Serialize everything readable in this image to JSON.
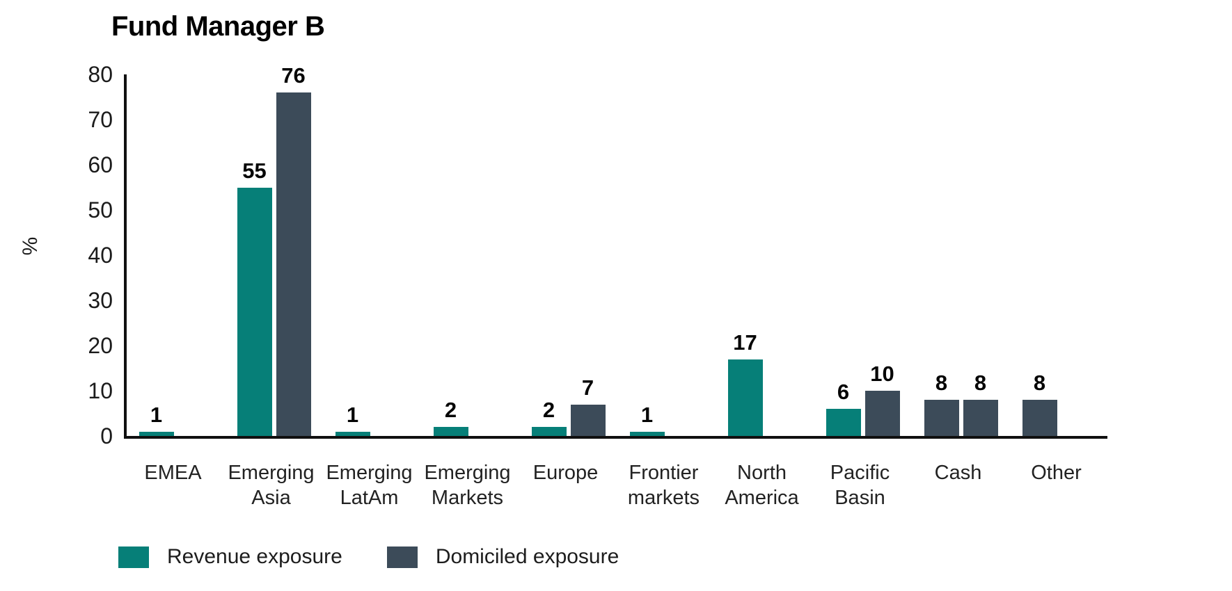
{
  "title": "Fund Manager B",
  "chart_data": {
    "type": "bar",
    "title": "Fund Manager B",
    "xlabel": "",
    "ylabel": "%",
    "ylim": [
      0,
      80
    ],
    "yticks": [
      0,
      10,
      20,
      30,
      40,
      50,
      60,
      70,
      80
    ],
    "grid": false,
    "legend_position": "bottom-left",
    "value_labels": true,
    "axis_color": "#101010",
    "categories": [
      "EMEA",
      "Emerging Asia",
      "Emerging LatAm",
      "Emerging Markets",
      "Europe",
      "Frontier markets",
      "North America",
      "Pacific Basin",
      "Cash",
      "Other"
    ],
    "series": [
      {
        "name": "Revenue exposure",
        "color": "#067f78",
        "values": [
          1,
          55,
          1,
          2,
          2,
          1,
          17,
          6,
          8,
          8
        ]
      },
      {
        "name": "Domiciled exposure",
        "color": "#3c4b59",
        "values": [
          null,
          76,
          null,
          null,
          7,
          null,
          null,
          10,
          8,
          null
        ]
      }
    ],
    "bar_color_overrides": [
      {
        "category": "Cash",
        "series": "Revenue exposure",
        "color": "#3c4b59"
      },
      {
        "category": "Other",
        "series": "Revenue exposure",
        "color": "#3c4b59"
      }
    ]
  },
  "legend": {
    "items": [
      {
        "label": "Revenue exposure",
        "color": "#067f78"
      },
      {
        "label": "Domiciled exposure",
        "color": "#3c4b59"
      }
    ]
  }
}
